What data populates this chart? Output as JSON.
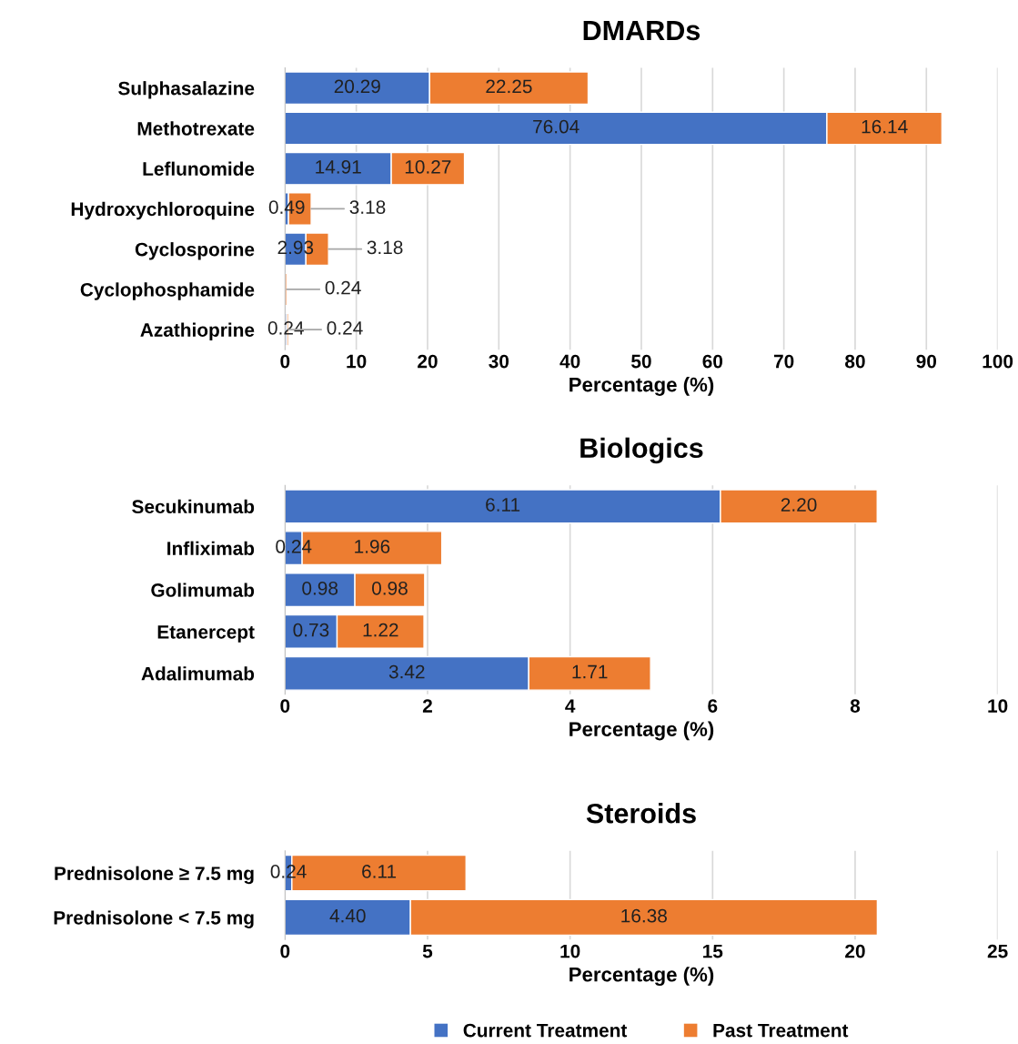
{
  "chart_data": [
    {
      "type": "bar",
      "title": "DMARDs",
      "orientation": "horizontal",
      "stacked": true,
      "categories": [
        "Sulphasalazine",
        "Methotrexate",
        "Leflunomide",
        "Hydroxychloroquine",
        "Cyclosporine",
        "Cyclophosphamide",
        "Azathioprine"
      ],
      "series": [
        {
          "color": "#4472c4",
          "values": [
            20.29,
            76.04,
            14.91,
            0.49,
            2.93,
            null,
            0.24
          ],
          "value_labels": [
            "20.29",
            "76.04",
            "14.91",
            "0.49",
            "2.93",
            null,
            "0.24"
          ]
        },
        {
          "color": "#ed7d31",
          "values": [
            22.25,
            16.14,
            10.27,
            3.18,
            3.18,
            0.24,
            0.24
          ],
          "value_labels": [
            "22.25",
            "16.14",
            "10.27",
            "3.18",
            "3.18",
            "0.24",
            "0.24"
          ]
        }
      ],
      "xlim": [
        0,
        100
      ],
      "xticks": [
        0,
        10,
        20,
        30,
        40,
        50,
        60,
        70,
        80,
        90,
        100
      ],
      "xlabel": "Percentage (%)",
      "grid": "x"
    },
    {
      "type": "bar",
      "title": "Biologics",
      "orientation": "horizontal",
      "stacked": true,
      "categories": [
        "Secukinumab",
        "Infliximab",
        "Golimumab",
        "Etanercept",
        "Adalimumab"
      ],
      "series": [
        {
          "color": "#4472c4",
          "values": [
            6.11,
            0.24,
            0.98,
            0.73,
            3.42
          ],
          "value_labels": [
            "6.11",
            "0.24",
            "0.98",
            "0.73",
            "3.42"
          ]
        },
        {
          "color": "#ed7d31",
          "values": [
            2.2,
            1.96,
            0.98,
            1.22,
            1.71
          ],
          "value_labels": [
            "2.20",
            "1.96",
            "0.98",
            "1.22",
            "1.71"
          ]
        }
      ],
      "xlim": [
        0,
        10
      ],
      "xticks": [
        0,
        2,
        4,
        6,
        8,
        10
      ],
      "xlabel": "Percentage (%)",
      "grid": "x"
    },
    {
      "type": "bar",
      "title": "Steroids",
      "orientation": "horizontal",
      "stacked": true,
      "categories": [
        "Prednisolone ≥ 7.5 mg",
        "Prednisolone < 7.5 mg"
      ],
      "series": [
        {
          "name": "Current Treatment",
          "color": "#4472c4",
          "values": [
            0.24,
            4.4
          ],
          "value_labels": [
            "0.24",
            "4.40"
          ]
        },
        {
          "name": "Past Treatment",
          "color": "#ed7d31",
          "values": [
            6.11,
            16.38
          ],
          "value_labels": [
            "6.11",
            "16.38"
          ]
        }
      ],
      "xlim": [
        0,
        25
      ],
      "xticks": [
        0,
        5,
        10,
        15,
        20,
        25
      ],
      "xlabel": "Percentage (%)",
      "grid": "x",
      "legend": "bottom"
    }
  ]
}
